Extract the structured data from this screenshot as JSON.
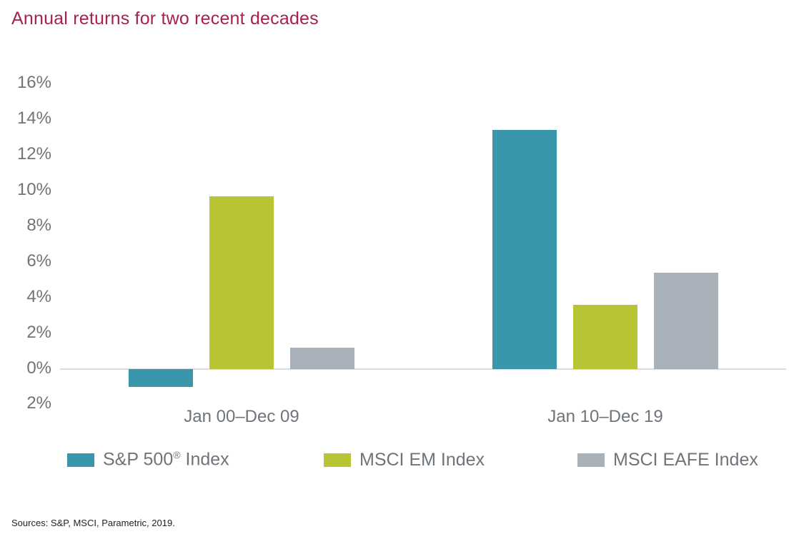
{
  "title": "Annual returns for two recent decades",
  "source": "Sources: S&P, MSCI, Parametric, 2019.",
  "colors": {
    "title": "#a8214f",
    "sp500": "#3a97ab",
    "msci_em": "#b8c433",
    "msci_eafe": "#a8b1ba",
    "axis_text": "#6f7479"
  },
  "y_axis": {
    "ticks": [
      "16%",
      "14%",
      "12%",
      "10%",
      "8%",
      "6%",
      "4%",
      "2%",
      "0%",
      "2%"
    ]
  },
  "x_axis": {
    "categories": [
      "Jan 00–Dec 09",
      "Jan 10–Dec 19"
    ]
  },
  "legend": [
    {
      "label": "S&P 500",
      "sup": "®",
      "suffix": " Index",
      "color": "#3a97ab"
    },
    {
      "label": "MSCI EM Index",
      "color": "#b8c433"
    },
    {
      "label": "MSCI EAFE Index",
      "color": "#a8b1ba"
    }
  ],
  "chart_data": {
    "type": "bar",
    "title": "Annual returns for two recent decades",
    "xlabel": "",
    "ylabel": "",
    "categories": [
      "Jan 00–Dec 09",
      "Jan 10–Dec 19"
    ],
    "series": [
      {
        "name": "S&P 500® Index",
        "values": [
          -1.0,
          13.4
        ]
      },
      {
        "name": "MSCI EM Index",
        "values": [
          9.7,
          3.6
        ]
      },
      {
        "name": "MSCI EAFE Index",
        "values": [
          1.2,
          5.4
        ]
      }
    ],
    "ylim": [
      -2,
      16
    ],
    "yticks": [
      "16%",
      "14%",
      "12%",
      "10%",
      "8%",
      "6%",
      "4%",
      "2%",
      "0%",
      "2%"
    ],
    "grid": false,
    "legend_position": "bottom",
    "annotations": [
      "Sources: S&P, MSCI, Parametric, 2019."
    ]
  }
}
